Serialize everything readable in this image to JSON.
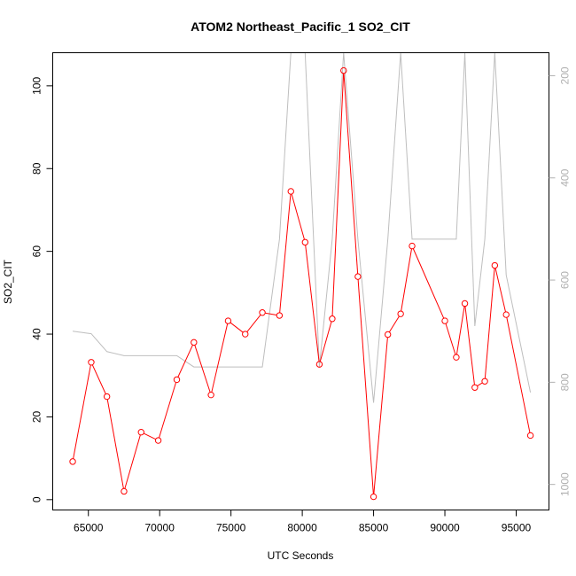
{
  "chart_data": {
    "type": "line",
    "title": "ATOM2 Northeast_Pacific_1 SO2_CIT",
    "xlabel": "UTC Seconds",
    "ylabel": "SO2_CIT",
    "xlim": [
      62500,
      97300
    ],
    "ylim": [
      -2.5,
      108
    ],
    "xticks": [
      65000,
      70000,
      75000,
      80000,
      85000,
      90000,
      95000
    ],
    "yticks": [
      0,
      20,
      40,
      60,
      80,
      100
    ],
    "y2lim": [
      1050,
      155
    ],
    "y2ticks": [
      200,
      400,
      600,
      800,
      1000
    ],
    "grid": false,
    "series": [
      {
        "color": "#ff0000",
        "marker": "open-circle",
        "x": [
          63900,
          65200,
          66300,
          67500,
          68700,
          69900,
          71200,
          72400,
          73600,
          74800,
          76000,
          77200,
          78400,
          79200,
          80200,
          81200,
          82100,
          82900,
          83900,
          85000,
          86000,
          86900,
          87700,
          90000,
          90800,
          91400,
          92100,
          92800,
          93500,
          94300,
          96000
        ],
        "values": [
          9.2,
          33.2,
          24.9,
          2.0,
          16.3,
          14.3,
          29.0,
          38.0,
          25.3,
          43.2,
          40.0,
          45.2,
          44.5,
          74.5,
          62.2,
          32.7,
          43.7,
          103.7,
          53.9,
          0.7,
          39.9,
          44.9,
          61.3,
          43.2,
          34.4,
          47.4,
          27.1,
          28.6,
          56.6,
          44.7,
          15.5
        ]
      },
      {
        "color": "#bebebe",
        "marker": "none",
        "axis": "right",
        "x": [
          63900,
          65200,
          66300,
          67500,
          68700,
          69900,
          71200,
          72400,
          73600,
          74800,
          76000,
          77200,
          78400,
          79200,
          80200,
          81200,
          82100,
          82900,
          83900,
          85000,
          86000,
          86900,
          87700,
          90000,
          90800,
          91400,
          92100,
          92800,
          93500,
          94300,
          96000
        ],
        "values": [
          700,
          705,
          740,
          748,
          748,
          748,
          748,
          770,
          770,
          770,
          770,
          770,
          520,
          155,
          155,
          770,
          520,
          155,
          520,
          840,
          520,
          155,
          520,
          520,
          520,
          155,
          690,
          520,
          155,
          590,
          820
        ]
      }
    ]
  }
}
